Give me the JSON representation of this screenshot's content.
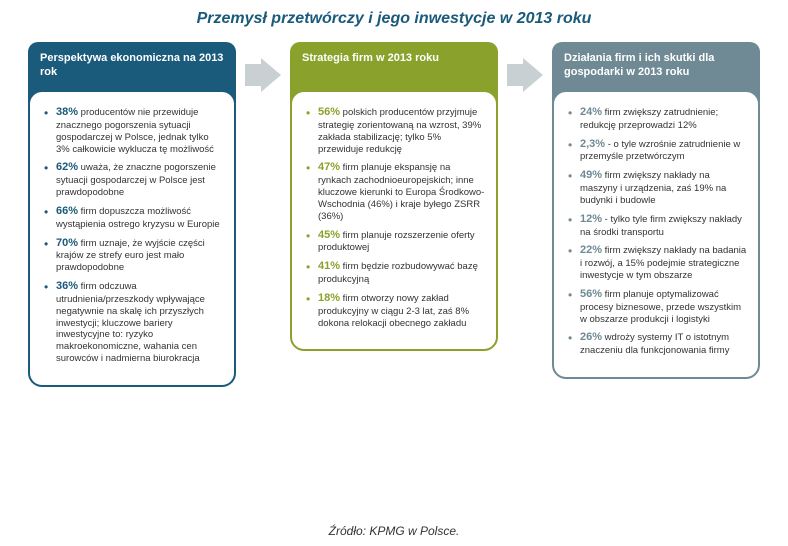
{
  "title": "Przemysł przetwórczy i jego inwestycje w 2013 roku",
  "source": "Źródło: KPMG w Polsce.",
  "arrow_fill": "#c8d0d4",
  "columns": [
    {
      "header": "Perspektywa ekonomiczna na 2013 rok",
      "items": [
        {
          "pct": "38%",
          "text": " producentów nie przewiduje znacznego pogorszenia sytuacji gospodarczej w Polsce, jednak tylko 3% całkowicie wyklucza tę możliwość"
        },
        {
          "pct": "62%",
          "text": " uważa, że znaczne pogorszenie sytuacji gospodarczej w Polsce jest prawdopodobne"
        },
        {
          "pct": "66%",
          "text": " firm dopuszcza możliwość wystąpienia ostrego kryzysu w Europie"
        },
        {
          "pct": "70%",
          "text": " firm uznaje, że wyjście części krajów ze strefy euro jest mało prawdopodobne"
        },
        {
          "pct": "36%",
          "text": " firm odczuwa utrudnienia/przeszkody wpływające negatywnie na skalę ich przyszłych inwestycji; kluczowe bariery inwestycyjne to: ryzyko makroekonomiczne, wahania cen surowców i nadmierna biurokracja"
        }
      ]
    },
    {
      "header": "Strategia firm w 2013 roku",
      "items": [
        {
          "pct": "56%",
          "text": " polskich producentów przyjmuje strategię zorientowaną na wzrost, 39% zakłada stabilizację; tylko 5% przewiduje redukcję"
        },
        {
          "pct": "47%",
          "text": " firm planuje ekspansję na rynkach zachodnioeuropejskich; inne kluczowe kierunki to Europa Środkowo-Wschodnia (46%) i kraje byłego ZSRR (36%)"
        },
        {
          "pct": "45%",
          "text": " firm planuje rozszerzenie oferty produktowej"
        },
        {
          "pct": "41%",
          "text": " firm będzie rozbudowywać bazę produkcyjną"
        },
        {
          "pct": "18%",
          "text": " firm otworzy nowy zakład produkcyjny w ciągu 2-3 lat, zaś 8% dokona relokacji obecnego zakładu"
        }
      ]
    },
    {
      "header": "Działania firm i ich skutki dla gospodarki w 2013 roku",
      "items": [
        {
          "pct": "24%",
          "text": " firm zwiększy zatrudnienie; redukcję przeprowadzi 12%"
        },
        {
          "pct": "2,3%",
          "text": " - o tyle wzrośnie zatrudnienie w przemyśle przetwórczym"
        },
        {
          "pct": "49%",
          "text": " firm zwiększy nakłady na maszyny i urządzenia, zaś 19% na budynki i budowle"
        },
        {
          "pct": "12%",
          "text": " - tylko tyle firm zwiększy nakłady na środki transportu"
        },
        {
          "pct": "22%",
          "text": " firm zwiększy nakłady na badania i rozwój, a 15% podejmie strategiczne inwestycje w tym obszarze"
        },
        {
          "pct": "56%",
          "text": " firm planuje optymalizować procesy biznesowe, przede wszystkim w obszarze produkcji i logistyki"
        },
        {
          "pct": "26%",
          "text": " wdroży systemy IT o istotnym znaczeniu dla funkcjonowania firmy"
        }
      ]
    }
  ]
}
